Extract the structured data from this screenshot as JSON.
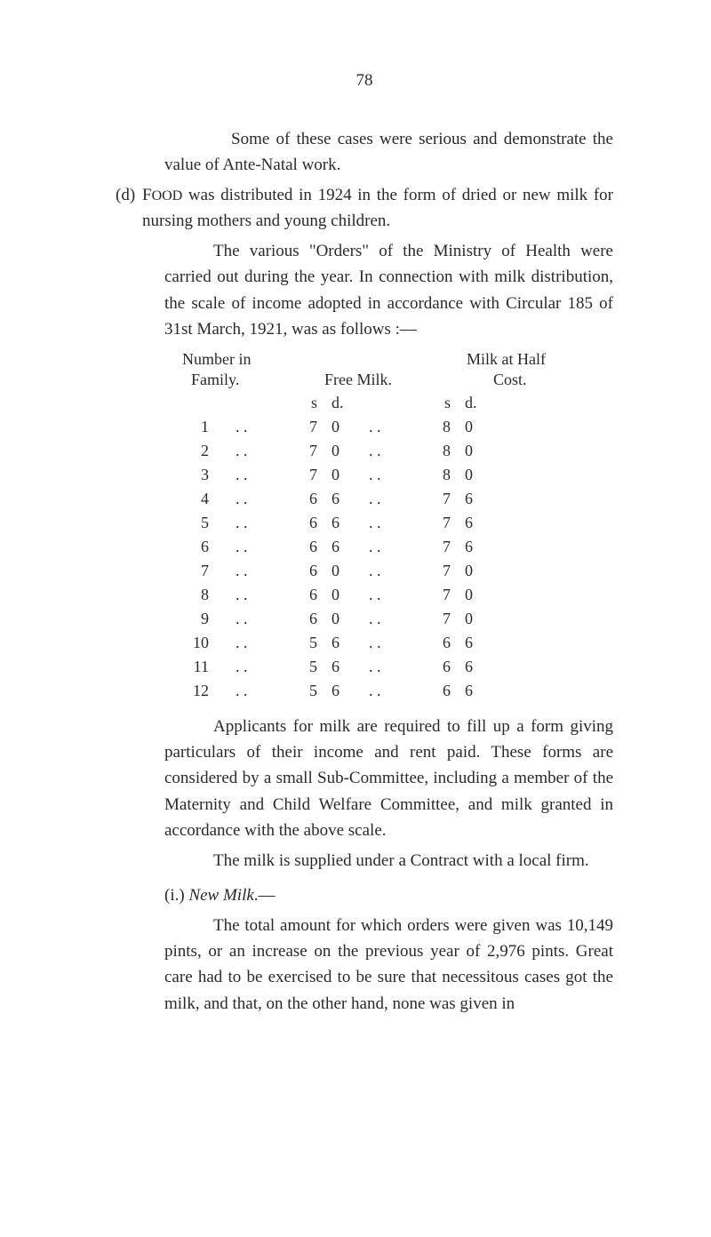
{
  "page_number": "78",
  "para1": "Some of these cases were serious and demonstrate the value of Ante-Natal work.",
  "d_marker": "(d)",
  "para2a": "F",
  "para2a_sc": "OOD",
  "para2b": " was distributed in 1924 in the form of dried or new milk for nursing mothers and young children.",
  "para3": "The various \"Orders\" of the Ministry of Health were carried out during the year. In connection with milk distribution, the scale of income adopted in accordance with Circular 185 of 31st March, 1921, was as follows :—",
  "table": {
    "header_left_1": "Number in",
    "header_left_2": "Family.",
    "header_mid": "Free Milk.",
    "header_right_1": "Milk at Half",
    "header_right_2": "Cost.",
    "sub_s": "s",
    "sub_d": "d.",
    "rows": [
      {
        "n": "1",
        "s1": "7",
        "d1": "0",
        "s2": "8",
        "d2": "0"
      },
      {
        "n": "2",
        "s1": "7",
        "d1": "0",
        "s2": "8",
        "d2": "0"
      },
      {
        "n": "3",
        "s1": "7",
        "d1": "0",
        "s2": "8",
        "d2": "0"
      },
      {
        "n": "4",
        "s1": "6",
        "d1": "6",
        "s2": "7",
        "d2": "6"
      },
      {
        "n": "5",
        "s1": "6",
        "d1": "6",
        "s2": "7",
        "d2": "6"
      },
      {
        "n": "6",
        "s1": "6",
        "d1": "6",
        "s2": "7",
        "d2": "6"
      },
      {
        "n": "7",
        "s1": "6",
        "d1": "0",
        "s2": "7",
        "d2": "0"
      },
      {
        "n": "8",
        "s1": "6",
        "d1": "0",
        "s2": "7",
        "d2": "0"
      },
      {
        "n": "9",
        "s1": "6",
        "d1": "0",
        "s2": "7",
        "d2": "0"
      },
      {
        "n": "10",
        "s1": "5",
        "d1": "6",
        "s2": "6",
        "d2": "6"
      },
      {
        "n": "11",
        "s1": "5",
        "d1": "6",
        "s2": "6",
        "d2": "6"
      },
      {
        "n": "12",
        "s1": "5",
        "d1": "6",
        "s2": "6",
        "d2": "6"
      }
    ],
    "dots": ". ."
  },
  "para4": "Applicants for milk are required to fill up a form giving particulars of their income and rent paid. These forms are considered by a small Sub-Committee, including a member of the Maternity and Child Welfare Committee, and milk granted in accordance with the above scale.",
  "para5": "The milk is supplied under a Contract with a local firm.",
  "section_i_label": "(i.)",
  "section_i_title": "New Milk",
  "section_i_dash": ".—",
  "para6": "The total amount for which orders were given was 10,149 pints, or an increase on the previous year of 2,976 pints. Great care had to be exercised to be sure that necessitous cases got the milk, and that, on the other hand, none was given in"
}
